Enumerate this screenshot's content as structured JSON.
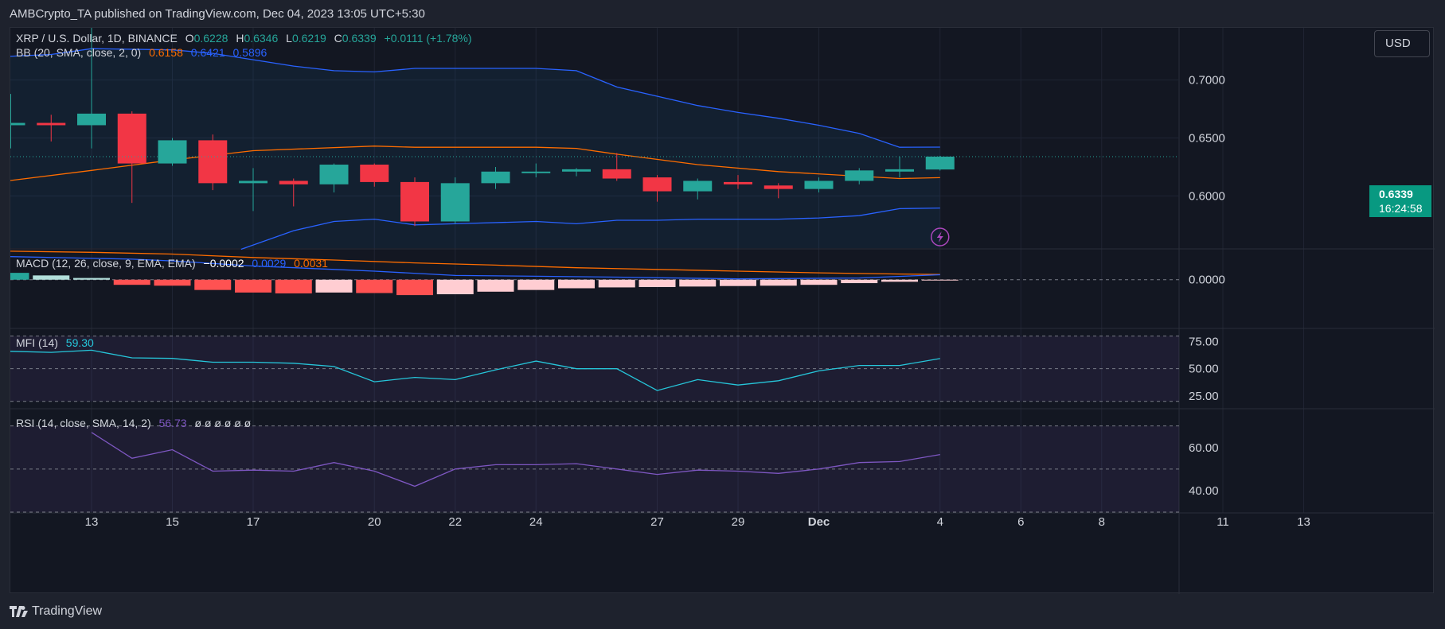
{
  "header": {
    "published": "AMBCrypto_TA published on TradingView.com, Dec 04, 2023 13:05 UTC+5:30"
  },
  "currency_button": "USD",
  "price_tag": {
    "price": "0.6339",
    "countdown": "16:24:58"
  },
  "footer": {
    "brand": "TradingView"
  },
  "legends": {
    "main": {
      "symbol": "XRP / U.S. Dollar, 1D, BINANCE",
      "o_label": "O",
      "o": "0.6228",
      "h_label": "H",
      "h": "0.6346",
      "l_label": "L",
      "l": "0.6219",
      "c_label": "C",
      "c": "0.6339",
      "change": "+0.0111 (+1.78%)"
    },
    "bb": {
      "label": "BB (20, SMA, close, 2, 0)",
      "basis": "0.6158",
      "upper": "0.6421",
      "lower": "0.5896"
    },
    "macd": {
      "label": "MACD (12, 26, close, 9, EMA, EMA)",
      "hist": "−0.0002",
      "macd": "0.0029",
      "signal": "0.0031"
    },
    "mfi": {
      "label": "MFI (14)",
      "value": "59.30"
    },
    "rsi": {
      "label": "RSI (14, close, SMA, 14, 2)",
      "value": "56.73",
      "extra": "ø  ø  ø  ø  ø  ø"
    }
  },
  "colors": {
    "up": "#26a69a",
    "down": "#f23645",
    "bb_band": "#2962ff",
    "bb_basis": "#ff6d00",
    "macd": "#2962ff",
    "signal": "#ff6d00",
    "mfi": "#26c6da",
    "rsi": "#7e57c2"
  },
  "chart_data": {
    "type": "candlestick",
    "title": "XRP / U.S. Dollar, 1D, BINANCE",
    "x_tick_labels": [
      {
        "day": 13,
        "label": "13"
      },
      {
        "day": 15,
        "label": "15"
      },
      {
        "day": 17,
        "label": "17"
      },
      {
        "day": 20,
        "label": "20"
      },
      {
        "day": 22,
        "label": "22"
      },
      {
        "day": 24,
        "label": "24"
      },
      {
        "day": 27,
        "label": "27"
      },
      {
        "day": 29,
        "label": "29"
      },
      {
        "day": 31,
        "label": "Dec"
      },
      {
        "day": 34,
        "label": "4"
      },
      {
        "day": 36,
        "label": "6"
      },
      {
        "day": 38,
        "label": "8"
      },
      {
        "day": 41,
        "label": "11"
      },
      {
        "day": 43,
        "label": "13"
      }
    ],
    "price_ylim": [
      0.555,
      0.745
    ],
    "price_ticks": [
      {
        "v": 0.7,
        "label": "0.7000"
      },
      {
        "v": 0.65,
        "label": "0.6500"
      },
      {
        "v": 0.6,
        "label": "0.6000"
      }
    ],
    "candles": [
      {
        "day": 11,
        "o": 0.661,
        "h": 0.688,
        "l": 0.641,
        "c": 0.663
      },
      {
        "day": 12,
        "o": 0.663,
        "h": 0.67,
        "l": 0.647,
        "c": 0.661
      },
      {
        "day": 13,
        "o": 0.661,
        "h": 0.745,
        "l": 0.641,
        "c": 0.671
      },
      {
        "day": 14,
        "o": 0.671,
        "h": 0.673,
        "l": 0.594,
        "c": 0.628
      },
      {
        "day": 15,
        "o": 0.628,
        "h": 0.65,
        "l": 0.626,
        "c": 0.648
      },
      {
        "day": 16,
        "o": 0.648,
        "h": 0.653,
        "l": 0.605,
        "c": 0.611
      },
      {
        "day": 17,
        "o": 0.611,
        "h": 0.624,
        "l": 0.587,
        "c": 0.613
      },
      {
        "day": 18,
        "o": 0.613,
        "h": 0.615,
        "l": 0.591,
        "c": 0.61
      },
      {
        "day": 19,
        "o": 0.61,
        "h": 0.628,
        "l": 0.603,
        "c": 0.627
      },
      {
        "day": 20,
        "o": 0.627,
        "h": 0.628,
        "l": 0.608,
        "c": 0.612
      },
      {
        "day": 21,
        "o": 0.612,
        "h": 0.616,
        "l": 0.574,
        "c": 0.578
      },
      {
        "day": 22,
        "o": 0.578,
        "h": 0.616,
        "l": 0.576,
        "c": 0.611
      },
      {
        "day": 23,
        "o": 0.611,
        "h": 0.625,
        "l": 0.606,
        "c": 0.621
      },
      {
        "day": 24,
        "o": 0.62,
        "h": 0.628,
        "l": 0.616,
        "c": 0.621
      },
      {
        "day": 25,
        "o": 0.621,
        "h": 0.624,
        "l": 0.617,
        "c": 0.623
      },
      {
        "day": 26,
        "o": 0.623,
        "h": 0.637,
        "l": 0.613,
        "c": 0.615
      },
      {
        "day": 27,
        "o": 0.616,
        "h": 0.618,
        "l": 0.595,
        "c": 0.604
      },
      {
        "day": 28,
        "o": 0.604,
        "h": 0.615,
        "l": 0.597,
        "c": 0.613
      },
      {
        "day": 29,
        "o": 0.612,
        "h": 0.618,
        "l": 0.606,
        "c": 0.61
      },
      {
        "day": 30,
        "o": 0.609,
        "h": 0.611,
        "l": 0.598,
        "c": 0.606
      },
      {
        "day": 31,
        "o": 0.606,
        "h": 0.616,
        "l": 0.603,
        "c": 0.613
      },
      {
        "day": 32,
        "o": 0.613,
        "h": 0.624,
        "l": 0.61,
        "c": 0.622
      },
      {
        "day": 33,
        "o": 0.621,
        "h": 0.634,
        "l": 0.616,
        "c": 0.623
      },
      {
        "day": 34,
        "o": 0.6228,
        "h": 0.6346,
        "l": 0.6219,
        "c": 0.6339
      }
    ],
    "bb_upper": [
      {
        "day": 10,
        "v": 0.719
      },
      {
        "day": 12,
        "v": 0.722
      },
      {
        "day": 13,
        "v": 0.727
      },
      {
        "day": 15,
        "v": 0.726
      },
      {
        "day": 16,
        "v": 0.723
      },
      {
        "day": 18,
        "v": 0.712
      },
      {
        "day": 19,
        "v": 0.708
      },
      {
        "day": 20,
        "v": 0.707
      },
      {
        "day": 21,
        "v": 0.71
      },
      {
        "day": 23,
        "v": 0.71
      },
      {
        "day": 24,
        "v": 0.71
      },
      {
        "day": 25,
        "v": 0.708
      },
      {
        "day": 26,
        "v": 0.694
      },
      {
        "day": 28,
        "v": 0.678
      },
      {
        "day": 29,
        "v": 0.672
      },
      {
        "day": 30,
        "v": 0.667
      },
      {
        "day": 31,
        "v": 0.661
      },
      {
        "day": 32,
        "v": 0.654
      },
      {
        "day": 33,
        "v": 0.642
      },
      {
        "day": 34,
        "v": 0.6421
      }
    ],
    "bb_basis": [
      {
        "day": 10,
        "v": 0.609
      },
      {
        "day": 13,
        "v": 0.622
      },
      {
        "day": 15,
        "v": 0.631
      },
      {
        "day": 17,
        "v": 0.639
      },
      {
        "day": 20,
        "v": 0.643
      },
      {
        "day": 21,
        "v": 0.642
      },
      {
        "day": 24,
        "v": 0.642
      },
      {
        "day": 25,
        "v": 0.641
      },
      {
        "day": 26,
        "v": 0.636
      },
      {
        "day": 28,
        "v": 0.627
      },
      {
        "day": 30,
        "v": 0.621
      },
      {
        "day": 32,
        "v": 0.617
      },
      {
        "day": 33,
        "v": 0.615
      },
      {
        "day": 34,
        "v": 0.6158
      }
    ],
    "bb_lower": [
      {
        "day": 16.7,
        "v": 0.554
      },
      {
        "day": 18,
        "v": 0.57
      },
      {
        "day": 19,
        "v": 0.578
      },
      {
        "day": 20,
        "v": 0.58
      },
      {
        "day": 21,
        "v": 0.575
      },
      {
        "day": 22,
        "v": 0.576
      },
      {
        "day": 24,
        "v": 0.578
      },
      {
        "day": 25,
        "v": 0.576
      },
      {
        "day": 26,
        "v": 0.579
      },
      {
        "day": 27,
        "v": 0.579
      },
      {
        "day": 28,
        "v": 0.58
      },
      {
        "day": 30,
        "v": 0.58
      },
      {
        "day": 31,
        "v": 0.581
      },
      {
        "day": 32,
        "v": 0.583
      },
      {
        "day": 33,
        "v": 0.589
      },
      {
        "day": 34,
        "v": 0.5896
      }
    ],
    "macd": {
      "ylim": [
        -0.028,
        0.018
      ],
      "ticks": [
        {
          "v": 0.0,
          "label": "0.0000"
        }
      ],
      "histogram": [
        0.004,
        0.0025,
        0.001,
        -0.003,
        -0.0035,
        -0.006,
        -0.0075,
        -0.008,
        -0.0075,
        -0.0078,
        -0.009,
        -0.0085,
        -0.007,
        -0.006,
        -0.005,
        -0.0045,
        -0.0043,
        -0.004,
        -0.0037,
        -0.0035,
        -0.003,
        -0.002,
        -0.0012,
        -0.0002
      ],
      "macd_line": [
        {
          "day": 10,
          "v": 0.014
        },
        {
          "day": 14,
          "v": 0.012
        },
        {
          "day": 15,
          "v": 0.011
        },
        {
          "day": 17,
          "v": 0.008
        },
        {
          "day": 19,
          "v": 0.006
        },
        {
          "day": 20,
          "v": 0.005
        },
        {
          "day": 22,
          "v": 0.0025
        },
        {
          "day": 24,
          "v": 0.002
        },
        {
          "day": 26,
          "v": 0.0015
        },
        {
          "day": 29,
          "v": 0.0005
        },
        {
          "day": 32,
          "v": 0.001
        },
        {
          "day": 34,
          "v": 0.0029
        }
      ],
      "signal_line": [
        {
          "day": 10,
          "v": 0.017
        },
        {
          "day": 13,
          "v": 0.016
        },
        {
          "day": 15,
          "v": 0.015
        },
        {
          "day": 17,
          "v": 0.013
        },
        {
          "day": 19,
          "v": 0.0115
        },
        {
          "day": 21,
          "v": 0.0098
        },
        {
          "day": 23,
          "v": 0.0085
        },
        {
          "day": 25,
          "v": 0.007
        },
        {
          "day": 27,
          "v": 0.006
        },
        {
          "day": 29,
          "v": 0.005
        },
        {
          "day": 31,
          "v": 0.004
        },
        {
          "day": 33,
          "v": 0.0033
        },
        {
          "day": 34,
          "v": 0.0031
        }
      ]
    },
    "mfi": {
      "ylim": [
        14,
        87
      ],
      "band": [
        20,
        80
      ],
      "ticks": [
        {
          "v": 75,
          "label": "75.00"
        },
        {
          "v": 50,
          "label": "50.00"
        },
        {
          "v": 25,
          "label": "25.00"
        }
      ],
      "values": [
        {
          "day": 10,
          "v": 65
        },
        {
          "day": 11,
          "v": 66
        },
        {
          "day": 12,
          "v": 65
        },
        {
          "day": 13,
          "v": 67
        },
        {
          "day": 14,
          "v": 60
        },
        {
          "day": 15,
          "v": 59.5
        },
        {
          "day": 16,
          "v": 56
        },
        {
          "day": 17,
          "v": 56
        },
        {
          "day": 18,
          "v": 55
        },
        {
          "day": 19,
          "v": 52
        },
        {
          "day": 20,
          "v": 38
        },
        {
          "day": 21,
          "v": 42
        },
        {
          "day": 22,
          "v": 40
        },
        {
          "day": 23,
          "v": 49
        },
        {
          "day": 24,
          "v": 57
        },
        {
          "day": 25,
          "v": 50
        },
        {
          "day": 26,
          "v": 50
        },
        {
          "day": 27,
          "v": 30
        },
        {
          "day": 28,
          "v": 40
        },
        {
          "day": 29,
          "v": 35
        },
        {
          "day": 30,
          "v": 39
        },
        {
          "day": 31,
          "v": 48
        },
        {
          "day": 32,
          "v": 53
        },
        {
          "day": 33,
          "v": 53
        },
        {
          "day": 34,
          "v": 59.3
        }
      ]
    },
    "rsi": {
      "ylim": [
        30,
        78
      ],
      "band": [
        30,
        70
      ],
      "mid": 50,
      "ticks": [
        {
          "v": 60,
          "label": "60.00"
        },
        {
          "v": 40,
          "label": "40.00"
        }
      ],
      "values": [
        {
          "day": 13,
          "v": 67
        },
        {
          "day": 14,
          "v": 55
        },
        {
          "day": 15,
          "v": 59
        },
        {
          "day": 16,
          "v": 49
        },
        {
          "day": 17,
          "v": 49.5
        },
        {
          "day": 18,
          "v": 49
        },
        {
          "day": 19,
          "v": 53
        },
        {
          "day": 20,
          "v": 49
        },
        {
          "day": 21,
          "v": 42
        },
        {
          "day": 22,
          "v": 50
        },
        {
          "day": 23,
          "v": 52
        },
        {
          "day": 24,
          "v": 52
        },
        {
          "day": 25,
          "v": 52.5
        },
        {
          "day": 26,
          "v": 50
        },
        {
          "day": 27,
          "v": 47.5
        },
        {
          "day": 28,
          "v": 49.5
        },
        {
          "day": 29,
          "v": 49
        },
        {
          "day": 30,
          "v": 48
        },
        {
          "day": 31,
          "v": 50
        },
        {
          "day": 32,
          "v": 53
        },
        {
          "day": 33,
          "v": 53.5
        },
        {
          "day": 34,
          "v": 56.73
        }
      ]
    }
  }
}
